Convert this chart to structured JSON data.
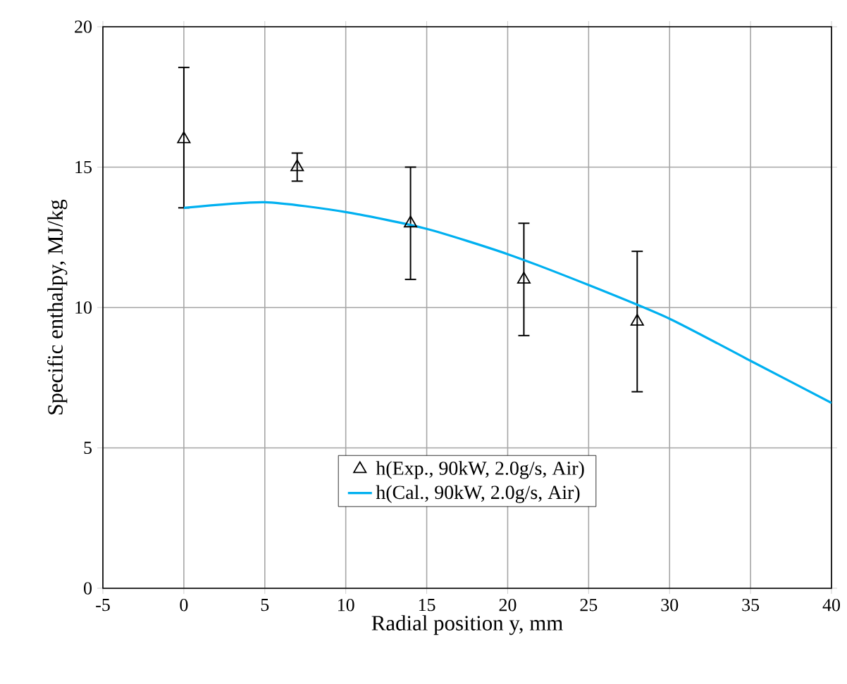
{
  "chart_data": {
    "type": "scatter",
    "xlabel": "Radial position y, mm",
    "ylabel": "Specific enthalpy, MJ/kg",
    "xlim": [
      -5,
      40
    ],
    "ylim": [
      0,
      20
    ],
    "xticks": [
      -5,
      0,
      5,
      10,
      15,
      20,
      25,
      30,
      35,
      40
    ],
    "yticks": [
      0,
      5,
      10,
      15,
      20
    ],
    "grid": true,
    "legend": "bottom",
    "series": [
      {
        "name": "h(Exp., 90kW, 2.0g/s, Air)",
        "color": "#000000",
        "marker": "triangle",
        "x": [
          0,
          7,
          14,
          21,
          28
        ],
        "values": [
          16,
          15,
          13,
          11,
          9.5
        ],
        "errors": [
          [
            13.55,
            18.55
          ],
          [
            14.5,
            15.5
          ],
          [
            11,
            15
          ],
          [
            9,
            13
          ],
          [
            7,
            12
          ]
        ]
      },
      {
        "name": "h(Cal., 90kW, 2.0g/s, Air)",
        "type": "line",
        "color": "#00b0f0",
        "marker": "none",
        "line_style": "solid",
        "x": [
          0,
          5,
          10,
          15,
          20,
          25,
          30,
          35,
          40
        ],
        "values": [
          13.55,
          13.75,
          13.4,
          12.8,
          11.9,
          10.8,
          9.6,
          8.1,
          6.6
        ]
      }
    ]
  }
}
